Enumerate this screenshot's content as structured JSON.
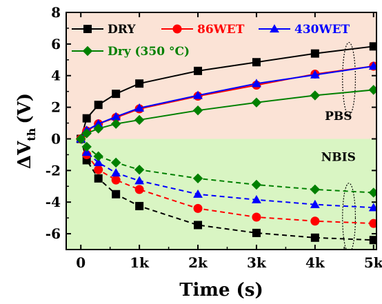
{
  "chart_data": {
    "type": "line",
    "xlabel": "Time (s)",
    "ylabel_main": "ΔV",
    "ylabel_sub": "th",
    "ylabel_unit": "(V)",
    "xlim": [
      -250,
      5050
    ],
    "ylim": [
      -7,
      8
    ],
    "xticks": [
      0,
      1000,
      2000,
      3000,
      4000,
      5000
    ],
    "xtick_labels": [
      "0",
      "1k",
      "2k",
      "3k",
      "4k",
      "5k"
    ],
    "yticks": [
      -6,
      -4,
      -2,
      0,
      2,
      4,
      6,
      8
    ],
    "ytick_labels": [
      "-6",
      "-4",
      "-2",
      "0",
      "2",
      "4",
      "6",
      "8"
    ],
    "regions": [
      {
        "name": "PBS region",
        "from": 0,
        "to": 8,
        "color": "#fbe3d6"
      },
      {
        "name": "NBIS region",
        "from": -7,
        "to": 0,
        "color": "#d9f5c3"
      }
    ],
    "annotations": [
      {
        "text": "PBS",
        "x": 4400,
        "y": 1.2
      },
      {
        "text": "NBIS",
        "x": 4400,
        "y": -1.4
      }
    ],
    "ellipses": [
      {
        "cx": 4580,
        "cy": 3.8,
        "rx": 110,
        "ry": 2.3
      },
      {
        "cx": 4580,
        "cy": -5.0,
        "rx": 110,
        "ry": 2.2
      }
    ],
    "x": [
      0,
      100,
      300,
      600,
      1000,
      2000,
      3000,
      4000,
      5000
    ],
    "series": [
      {
        "name": "DRY",
        "color": "#000000",
        "marker": "square",
        "pbs": [
          0,
          1.3,
          2.15,
          2.85,
          3.5,
          4.3,
          4.85,
          5.4,
          5.85
        ],
        "nbis": [
          0,
          -1.35,
          -2.5,
          -3.5,
          -4.25,
          -5.45,
          -5.95,
          -6.25,
          -6.4
        ]
      },
      {
        "name": "86WET",
        "color": "#ff0000",
        "marker": "circle",
        "pbs": [
          0,
          0.5,
          0.95,
          1.35,
          1.9,
          2.7,
          3.4,
          4.1,
          4.6
        ],
        "nbis": [
          0,
          -1.0,
          -1.95,
          -2.6,
          -3.2,
          -4.4,
          -4.95,
          -5.2,
          -5.35
        ]
      },
      {
        "name": "430WET",
        "color": "#0000ff",
        "marker": "triangle",
        "pbs": [
          0,
          0.55,
          0.95,
          1.4,
          1.95,
          2.75,
          3.5,
          4.05,
          4.6
        ],
        "nbis": [
          0,
          -0.85,
          -1.5,
          -2.15,
          -2.65,
          -3.5,
          -3.85,
          -4.15,
          -4.35
        ]
      },
      {
        "name": "Dry (350 °C)",
        "color": "#008000",
        "marker": "diamond",
        "pbs": [
          0,
          0.35,
          0.65,
          0.95,
          1.2,
          1.8,
          2.3,
          2.75,
          3.1
        ],
        "nbis": [
          0,
          -0.5,
          -1.1,
          -1.5,
          -1.95,
          -2.5,
          -2.9,
          -3.2,
          -3.4
        ]
      }
    ],
    "legend": {
      "placement": "top-left"
    }
  }
}
